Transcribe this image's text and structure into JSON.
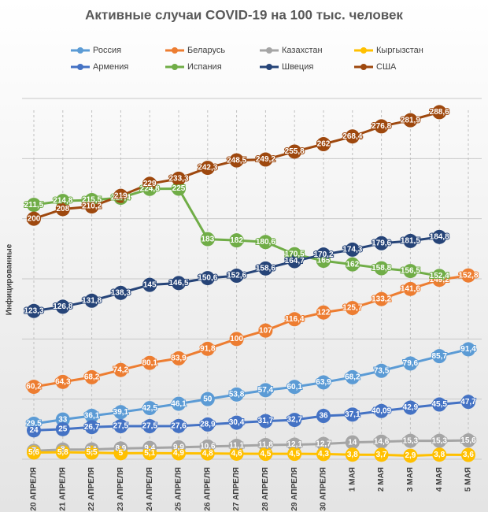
{
  "chart_data": {
    "type": "line",
    "title": "Активные случаи COVID-19 на 100 тыс. человек",
    "y_label": "Инфицированные",
    "categories": [
      "20 АПРЕЛЯ",
      "21 АПРЕЛЯ",
      "22 АПРЕЛЯ",
      "23 АПРЕЛЯ",
      "24 АПРЕЛЯ",
      "25 АПРЕЛЯ",
      "26 АПРЕЛЯ",
      "27 АПРЕЛЯ",
      "28 АПРЕЛЯ",
      "29 АПРЕЛЯ",
      "30 АПРЕЛЯ",
      "1 МАЯ",
      "2 МАЯ",
      "3 МАЯ",
      "4 МАЯ",
      "5 МАЯ"
    ],
    "ylim": [
      0,
      300
    ],
    "yticks": [
      0,
      50,
      100,
      150,
      200,
      250,
      300
    ],
    "grid": true,
    "series": [
      {
        "name": "Россия",
        "color": "#5b9bd5",
        "values": [
          29.5,
          33,
          36.1,
          39.1,
          42.5,
          46.1,
          50,
          53.8,
          57.4,
          60.1,
          63.9,
          68.2,
          73.5,
          79.6,
          85.7,
          91.4
        ],
        "value_labels": [
          "29,5",
          "33",
          "36,1",
          "39,1",
          "42,5",
          "46,1",
          "50",
          "53,8",
          "57,4",
          "60,1",
          "63,9",
          "68,2",
          "73,5",
          "79,6",
          "85,7",
          "91,4"
        ]
      },
      {
        "name": "Беларусь",
        "color": "#ed7d31",
        "values": [
          60.2,
          64.3,
          68.2,
          74.2,
          80.1,
          83.9,
          91.8,
          100,
          107,
          116.4,
          122,
          125.7,
          133.2,
          141.6,
          149.2,
          152.8
        ],
        "value_labels": [
          "60,2",
          "64,3",
          "68,2",
          "74,2",
          "80,1",
          "83,9",
          "91,8",
          "100",
          "107",
          "116,4",
          "122",
          "125,7",
          "133,2",
          "141,6",
          "149,2",
          "152,8"
        ]
      },
      {
        "name": "Казахстан",
        "color": "#a5a5a5",
        "values": [
          7,
          8,
          8.1,
          8.9,
          9.4,
          9.9,
          10.6,
          11.1,
          11.8,
          12.1,
          12.7,
          14,
          14.6,
          15.3,
          15.3,
          15.6
        ],
        "value_labels": [
          "7",
          "8",
          "8,1",
          "8,9",
          "9,4",
          "9,9",
          "10,6",
          "11,1",
          "11,8",
          "12,1",
          "12,7",
          "14",
          "14,6",
          "15,3",
          "15,3",
          "15,6"
        ]
      },
      {
        "name": "Кыргызстан",
        "color": "#ffc000",
        "values": [
          5.6,
          5.8,
          5.5,
          5,
          5.1,
          4.9,
          4.8,
          4.6,
          4.5,
          4.5,
          4.3,
          3.8,
          3.7,
          2.9,
          3.8,
          3.6
        ],
        "value_labels": [
          "5,6",
          "5,8",
          "5,5",
          "5",
          "5,1",
          "4,9",
          "4,8",
          "4,6",
          "4,5",
          "4,5",
          "4,3",
          "3,8",
          "3,7",
          "2,9",
          "3,8",
          "3,6"
        ]
      },
      {
        "name": "Армения",
        "color": "#4472c4",
        "values": [
          24,
          25,
          26.7,
          27.5,
          27.5,
          27.6,
          28.9,
          30.4,
          31.7,
          32.7,
          36,
          37.1,
          40.09,
          42.9,
          45.5,
          47.7
        ],
        "value_labels": [
          "24",
          "25",
          "26,7",
          "27,5",
          "27,5",
          "27,6",
          "28,9",
          "30,4",
          "31,7",
          "32,7",
          "36",
          "37,1",
          "40,09",
          "42,9",
          "45,5",
          "47,7"
        ]
      },
      {
        "name": "Испания",
        "color": "#70ad47",
        "values": [
          211.5,
          214.8,
          215.5,
          217.4,
          224.8,
          225,
          183,
          182,
          180.6,
          170.5,
          165,
          162,
          158.8,
          156.5,
          152.4,
          null
        ],
        "value_labels": [
          "211,5",
          "214,8",
          "215,5",
          "217,4",
          "224,8",
          "225",
          "183",
          "182",
          "180,6",
          "170,5",
          "165",
          "162",
          "158,8",
          "156,5",
          "152,4",
          null
        ]
      },
      {
        "name": "Швеция",
        "color": "#264478",
        "values": [
          123.3,
          126.8,
          131.8,
          138.3,
          145,
          146.5,
          150.6,
          152.6,
          158.6,
          164.7,
          170.2,
          174.3,
          179.6,
          181.5,
          184.8,
          null
        ],
        "value_labels": [
          "123,3",
          "126,8",
          "131,8",
          "138,3",
          "145",
          "146,5",
          "150,6",
          "152,6",
          "158,6",
          "164,7",
          "170,2",
          "174,3",
          "179,6",
          "181,5",
          "184,8",
          null
        ]
      },
      {
        "name": "США",
        "color": "#9e480e",
        "values": [
          200,
          208,
          210.2,
          219,
          229,
          233.3,
          242.3,
          248.5,
          249.2,
          255.8,
          262,
          268.4,
          276.8,
          281.9,
          288.6,
          null
        ],
        "value_labels": [
          "200",
          "208",
          "210,2",
          "219",
          "229",
          "233,3",
          "242,3",
          "248,5",
          "249,2",
          "255,8",
          "262",
          "268,4",
          "276,8",
          "281,9",
          "288,6",
          null
        ]
      }
    ]
  }
}
